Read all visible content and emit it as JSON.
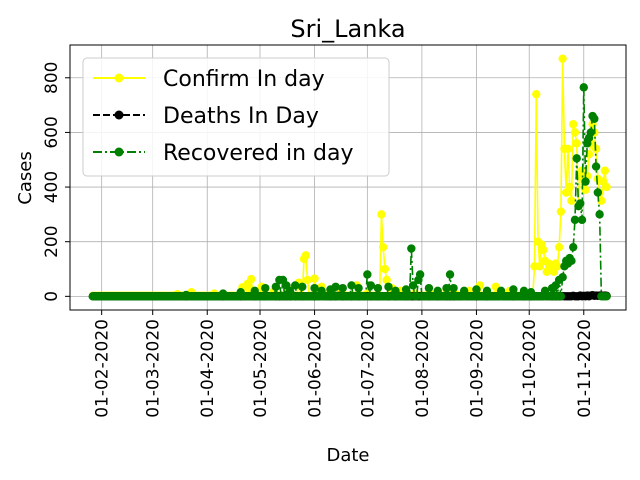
{
  "chart_data": {
    "type": "line",
    "title": "Sri_Lanka",
    "xlabel": "Date",
    "ylabel": "Cases",
    "x_range": [
      "2020-01-14",
      "2020-11-25"
    ],
    "ylim": [
      -50,
      920
    ],
    "x_ticks": [
      "01-02-2020",
      "01-03-2020",
      "01-04-2020",
      "01-05-2020",
      "01-06-2020",
      "01-07-2020",
      "01-08-2020",
      "01-09-2020",
      "01-10-2020",
      "01-11-2020"
    ],
    "y_ticks": [
      0,
      200,
      400,
      600,
      800
    ],
    "grid": true,
    "legend_position": "upper-left",
    "data_start": "2020-01-27",
    "data_end": "2020-11-14",
    "series": [
      {
        "name": "Confirm In day",
        "color": "#ffff00",
        "line_style": "solid",
        "marker": "circle",
        "baseline": 2,
        "peaks": [
          [
            "2020-03-15",
            8
          ],
          [
            "2020-03-23",
            15
          ],
          [
            "2020-04-05",
            10
          ],
          [
            "2020-04-21",
            33
          ],
          [
            "2020-04-24",
            46
          ],
          [
            "2020-04-26",
            63
          ],
          [
            "2020-05-02",
            35
          ],
          [
            "2020-05-09",
            20
          ],
          [
            "2020-05-17",
            25
          ],
          [
            "2020-05-23",
            50
          ],
          [
            "2020-05-26",
            137
          ],
          [
            "2020-05-27",
            150
          ],
          [
            "2020-05-28",
            60
          ],
          [
            "2020-06-01",
            65
          ],
          [
            "2020-06-05",
            35
          ],
          [
            "2020-06-10",
            20
          ],
          [
            "2020-06-16",
            15
          ],
          [
            "2020-06-25",
            40
          ],
          [
            "2020-07-01",
            10
          ],
          [
            "2020-07-09",
            300
          ],
          [
            "2020-07-10",
            180
          ],
          [
            "2020-07-11",
            100
          ],
          [
            "2020-07-12",
            60
          ],
          [
            "2020-07-15",
            30
          ],
          [
            "2020-07-20",
            20
          ],
          [
            "2020-07-28",
            10
          ],
          [
            "2020-08-05",
            15
          ],
          [
            "2020-08-15",
            25
          ],
          [
            "2020-08-20",
            10
          ],
          [
            "2020-08-28",
            20
          ],
          [
            "2020-09-03",
            40
          ],
          [
            "2020-09-12",
            35
          ],
          [
            "2020-09-20",
            20
          ],
          [
            "2020-09-28",
            10
          ],
          [
            "2020-10-04",
            110
          ],
          [
            "2020-10-05",
            740
          ],
          [
            "2020-10-06",
            200
          ],
          [
            "2020-10-07",
            110
          ],
          [
            "2020-10-08",
            190
          ],
          [
            "2020-10-09",
            170
          ],
          [
            "2020-10-10",
            130
          ],
          [
            "2020-10-11",
            90
          ],
          [
            "2020-10-12",
            120
          ],
          [
            "2020-10-13",
            110
          ],
          [
            "2020-10-14",
            100
          ],
          [
            "2020-10-15",
            90
          ],
          [
            "2020-10-16",
            120
          ],
          [
            "2020-10-17",
            110
          ],
          [
            "2020-10-18",
            180
          ],
          [
            "2020-10-19",
            310
          ],
          [
            "2020-10-20",
            870
          ],
          [
            "2020-10-21",
            540
          ],
          [
            "2020-10-22",
            380
          ],
          [
            "2020-10-23",
            540
          ],
          [
            "2020-10-24",
            400
          ],
          [
            "2020-10-25",
            350
          ],
          [
            "2020-10-26",
            630
          ],
          [
            "2020-10-27",
            600
          ],
          [
            "2020-10-28",
            560
          ],
          [
            "2020-10-29",
            330
          ],
          [
            "2020-10-30",
            440
          ],
          [
            "2020-10-31",
            460
          ],
          [
            "2020-11-01",
            440
          ],
          [
            "2020-11-02",
            390
          ],
          [
            "2020-11-03",
            440
          ],
          [
            "2020-11-04",
            520
          ],
          [
            "2020-11-05",
            560
          ],
          [
            "2020-11-06",
            630
          ],
          [
            "2020-11-07",
            600
          ],
          [
            "2020-11-08",
            540
          ],
          [
            "2020-11-09",
            430
          ],
          [
            "2020-11-10",
            380
          ],
          [
            "2020-11-11",
            350
          ],
          [
            "2020-11-12",
            420
          ],
          [
            "2020-11-13",
            460
          ],
          [
            "2020-11-14",
            400
          ]
        ]
      },
      {
        "name": "Deaths In Day",
        "color": "#000000",
        "line_style": "dashed",
        "marker": "circle",
        "baseline": 0,
        "peaks": [
          [
            "2020-05-05",
            1
          ],
          [
            "2020-05-20",
            2
          ],
          [
            "2020-06-05",
            1
          ],
          [
            "2020-06-15",
            2
          ],
          [
            "2020-07-01",
            1
          ],
          [
            "2020-07-15",
            2
          ],
          [
            "2020-08-01",
            1
          ],
          [
            "2020-08-25",
            1
          ],
          [
            "2020-09-15",
            1
          ],
          [
            "2020-10-10",
            1
          ],
          [
            "2020-10-20",
            1
          ],
          [
            "2020-10-26",
            2
          ],
          [
            "2020-10-30",
            3
          ],
          [
            "2020-11-01",
            2
          ],
          [
            "2020-11-03",
            3
          ],
          [
            "2020-11-05",
            3
          ],
          [
            "2020-11-06",
            4
          ],
          [
            "2020-11-07",
            2
          ],
          [
            "2020-11-08",
            3
          ],
          [
            "2020-11-09",
            2
          ],
          [
            "2020-11-10",
            3
          ],
          [
            "2020-11-11",
            3
          ],
          [
            "2020-11-12",
            2
          ],
          [
            "2020-11-13",
            3
          ],
          [
            "2020-11-14",
            2
          ]
        ]
      },
      {
        "name": "Recovered in day",
        "color": "#008000",
        "line_style": "dashdot",
        "marker": "circle",
        "baseline": 0,
        "peaks": [
          [
            "2020-03-20",
            5
          ],
          [
            "2020-04-10",
            10
          ],
          [
            "2020-04-20",
            15
          ],
          [
            "2020-04-28",
            20
          ],
          [
            "2020-05-04",
            30
          ],
          [
            "2020-05-10",
            35
          ],
          [
            "2020-05-12",
            60
          ],
          [
            "2020-05-14",
            60
          ],
          [
            "2020-05-16",
            40
          ],
          [
            "2020-05-18",
            20
          ],
          [
            "2020-05-21",
            40
          ],
          [
            "2020-05-25",
            35
          ],
          [
            "2020-06-01",
            30
          ],
          [
            "2020-06-05",
            20
          ],
          [
            "2020-06-10",
            25
          ],
          [
            "2020-06-13",
            35
          ],
          [
            "2020-06-17",
            30
          ],
          [
            "2020-06-22",
            40
          ],
          [
            "2020-06-26",
            30
          ],
          [
            "2020-07-01",
            80
          ],
          [
            "2020-07-03",
            40
          ],
          [
            "2020-07-07",
            30
          ],
          [
            "2020-07-13",
            35
          ],
          [
            "2020-07-17",
            20
          ],
          [
            "2020-07-23",
            25
          ],
          [
            "2020-07-26",
            175
          ],
          [
            "2020-07-27",
            40
          ],
          [
            "2020-07-30",
            60
          ],
          [
            "2020-07-31",
            80
          ],
          [
            "2020-08-05",
            30
          ],
          [
            "2020-08-10",
            20
          ],
          [
            "2020-08-15",
            30
          ],
          [
            "2020-08-17",
            80
          ],
          [
            "2020-08-19",
            30
          ],
          [
            "2020-08-25",
            20
          ],
          [
            "2020-09-01",
            25
          ],
          [
            "2020-09-07",
            20
          ],
          [
            "2020-09-15",
            20
          ],
          [
            "2020-09-22",
            25
          ],
          [
            "2020-09-28",
            20
          ],
          [
            "2020-10-02",
            15
          ],
          [
            "2020-10-10",
            20
          ],
          [
            "2020-10-14",
            30
          ],
          [
            "2020-10-16",
            40
          ],
          [
            "2020-10-18",
            60
          ],
          [
            "2020-10-20",
            70
          ],
          [
            "2020-10-21",
            110
          ],
          [
            "2020-10-22",
            130
          ],
          [
            "2020-10-23",
            120
          ],
          [
            "2020-10-24",
            140
          ],
          [
            "2020-10-25",
            130
          ],
          [
            "2020-10-26",
            180
          ],
          [
            "2020-10-27",
            280
          ],
          [
            "2020-10-28",
            505
          ],
          [
            "2020-10-29",
            330
          ],
          [
            "2020-10-30",
            340
          ],
          [
            "2020-10-31",
            280
          ],
          [
            "2020-11-01",
            765
          ],
          [
            "2020-11-02",
            420
          ],
          [
            "2020-11-03",
            560
          ],
          [
            "2020-11-04",
            580
          ],
          [
            "2020-11-05",
            600
          ],
          [
            "2020-11-06",
            660
          ],
          [
            "2020-11-07",
            650
          ],
          [
            "2020-11-08",
            475
          ],
          [
            "2020-11-09",
            380
          ],
          [
            "2020-11-10",
            300
          ]
        ]
      }
    ]
  }
}
